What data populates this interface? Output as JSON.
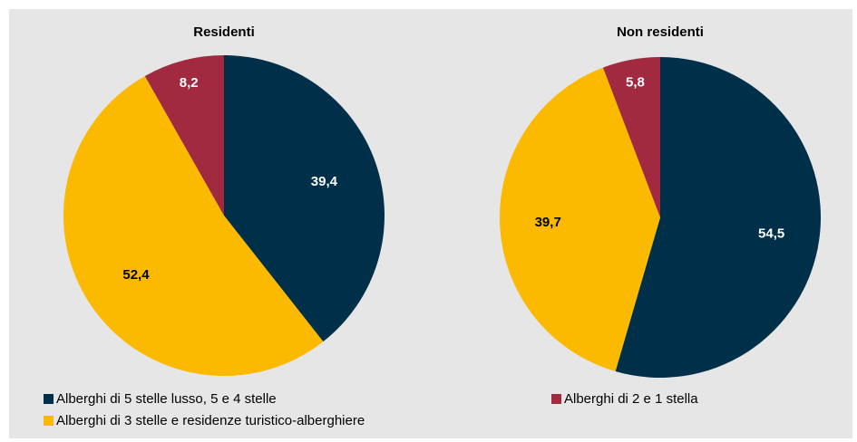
{
  "colors": {
    "background": "#e6e6e6",
    "navy": "#003049",
    "yellow": "#fbb900",
    "crimson": "#a12a41"
  },
  "chart_data": [
    {
      "type": "pie",
      "title": "Residenti",
      "start_angle_deg": 0,
      "direction": "clockwise",
      "slices": [
        {
          "label": "Alberghi di 5 stelle lusso, 5 e 4 stelle",
          "value": 39.4,
          "display": "39,4",
          "color": "#003049",
          "text_color": "#ffffff"
        },
        {
          "label": "Alberghi di 3 stelle e residenze turistico-alberghiere",
          "value": 52.4,
          "display": "52,4",
          "color": "#fbb900",
          "text_color": "#000000"
        },
        {
          "label": "Alberghi di 2 e 1 stella",
          "value": 8.2,
          "display": "8,2",
          "color": "#a12a41",
          "text_color": "#ffffff"
        }
      ]
    },
    {
      "type": "pie",
      "title": "Non residenti",
      "start_angle_deg": 0,
      "direction": "clockwise",
      "slices": [
        {
          "label": "Alberghi di 5 stelle lusso, 5 e 4 stelle",
          "value": 54.5,
          "display": "54,5",
          "color": "#003049",
          "text_color": "#ffffff"
        },
        {
          "label": "Alberghi di 3 stelle e residenze turistico-alberghiere",
          "value": 39.7,
          "display": "39,7",
          "color": "#fbb900",
          "text_color": "#000000"
        },
        {
          "label": "Alberghi di 2 e 1 stella",
          "value": 5.8,
          "display": "5,8",
          "color": "#a12a41",
          "text_color": "#ffffff"
        }
      ]
    }
  ],
  "legend": {
    "placement": "bottom",
    "items": [
      {
        "label": "Alberghi di 5 stelle lusso, 5 e 4 stelle",
        "color": "#003049"
      },
      {
        "label": "Alberghi di 3 stelle e residenze turistico-alberghiere",
        "color": "#fbb900"
      },
      {
        "label": "Alberghi di 2 e 1 stella",
        "color": "#a12a41"
      }
    ]
  }
}
